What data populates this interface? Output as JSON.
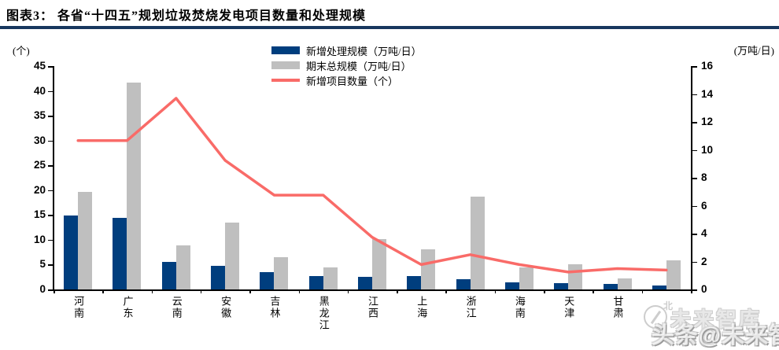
{
  "header": {
    "title": "图表3：  各省“十四五”规划垃圾焚烧发电项目数量和处理规模"
  },
  "axes": {
    "left_unit": "(个)",
    "right_unit": "(万吨/日)"
  },
  "legend": [
    {
      "label": "新增处理规模（万吨/日）",
      "swatch": "bar",
      "color": "#003e7e"
    },
    {
      "label": "期末总规模（万吨/日）",
      "swatch": "bar",
      "color": "#bfbfbf"
    },
    {
      "label": "新增项目数量（个）",
      "swatch": "line",
      "color": "#f96b68"
    }
  ],
  "watermark": {
    "brand": "未来智库",
    "byline": "头条@未来智库",
    "compass_label": "北"
  },
  "chart_data": {
    "type": "bar+line combo, dual axis",
    "title": "各省“十四五”规划垃圾焚烧发电项目数量和处理规模",
    "categories": [
      "河南",
      "广东",
      "云南",
      "安徽",
      "吉林",
      "黑龙江",
      "江西",
      "上海",
      "浙江",
      "海南",
      "天津",
      "甘肃",
      ""
    ],
    "series": [
      {
        "name": "新增处理规模（万吨/日）",
        "type": "bar",
        "axis": "right",
        "color": "#003e7e",
        "values": [
          5.3,
          5.1,
          2.0,
          1.7,
          1.25,
          0.95,
          0.9,
          0.95,
          0.75,
          0.5,
          0.45,
          0.4,
          0.3
        ]
      },
      {
        "name": "期末总规模（万吨/日）",
        "type": "bar",
        "axis": "right",
        "color": "#bfbfbf",
        "values": [
          7.0,
          14.8,
          3.15,
          4.8,
          2.3,
          1.6,
          3.6,
          2.85,
          6.65,
          1.6,
          1.8,
          0.8,
          2.1
        ]
      },
      {
        "name": "新增项目数量（个）",
        "type": "line",
        "axis": "left",
        "color": "#f96b68",
        "values": [
          30,
          30,
          38.5,
          26,
          19,
          19,
          10.5,
          5,
          7,
          5,
          3.5,
          4.2,
          3.9
        ]
      }
    ],
    "left_axis": {
      "unit": "(个)",
      "min": 0,
      "max": 45,
      "ticks": [
        0,
        5,
        10,
        15,
        20,
        25,
        30,
        35,
        40,
        45
      ]
    },
    "right_axis": {
      "unit": "(万吨/日)",
      "min": 0,
      "max": 16,
      "ticks": [
        0,
        2,
        4,
        6,
        8,
        10,
        12,
        14,
        16
      ]
    },
    "legend_position": "top-center",
    "grid": "off"
  }
}
